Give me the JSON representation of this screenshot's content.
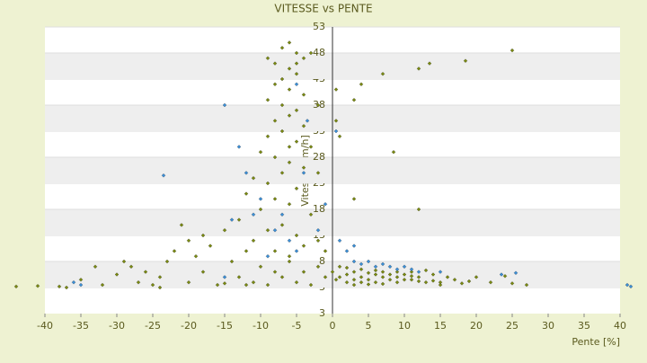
{
  "chart_data": {
    "type": "scatter",
    "title": "VITESSE vs PENTE",
    "x_label": "Pente [%]",
    "y_label": "Vitesse [km/h]",
    "xlim": [
      -40,
      40
    ],
    "xticks": [
      -40,
      -35,
      -30,
      -25,
      -20,
      -15,
      -10,
      -5,
      0,
      5,
      10,
      15,
      20,
      25,
      30,
      35,
      40
    ],
    "ylim": [
      -2,
      53
    ],
    "yticks": [
      3,
      8,
      13,
      18,
      23,
      28,
      33,
      38,
      43,
      48,
      53
    ],
    "y_axis_end_label": "3",
    "grid": true,
    "series": [
      {
        "color": "#7a8a10",
        "x": [
          -7,
          -6,
          -5,
          -4,
          -8,
          -6,
          -5,
          -7,
          -8,
          -6,
          -4,
          -9,
          -7,
          -5,
          -6,
          -8,
          -4,
          -7,
          -9,
          -5,
          -6,
          -10,
          -8,
          -6,
          -4,
          -7,
          -11,
          -9,
          -5,
          -12,
          -8,
          -6,
          -10,
          -3,
          -13,
          -7,
          -9,
          -5,
          -11,
          -4,
          -8,
          -6,
          -3,
          -9,
          -5,
          -2,
          -3,
          -2,
          0.5,
          0.5,
          1,
          -38,
          -35,
          -32,
          -30,
          -28,
          -27,
          -26,
          -25,
          -24,
          -23,
          -22,
          -21,
          -20,
          -19,
          -18,
          -17,
          -16,
          -15,
          -14,
          -13,
          -12,
          -11,
          -10,
          -9,
          -8,
          -7,
          -6,
          -5,
          -4,
          -3,
          -2,
          -1,
          -15,
          -12,
          -20,
          -18,
          -24,
          -44,
          -41,
          -37,
          -33,
          -29,
          -2,
          -1,
          0,
          1,
          2,
          3,
          4,
          5,
          6,
          7,
          8,
          9,
          10,
          11,
          12,
          13,
          14,
          15,
          16,
          17,
          18,
          19,
          20,
          22,
          25,
          2,
          3,
          4,
          5,
          6,
          7,
          8,
          9,
          10,
          11,
          12,
          1,
          2,
          3,
          5,
          7,
          13,
          15,
          0.5,
          6,
          9,
          4,
          11,
          14,
          24,
          27,
          4,
          7,
          12,
          13.5,
          18.5,
          25,
          8.5,
          12,
          3,
          3
        ],
        "values": [
          49,
          50,
          48,
          47,
          46,
          45,
          44,
          43,
          42,
          41,
          40,
          39,
          38,
          37,
          36,
          35,
          34,
          33,
          32,
          31,
          30,
          29,
          28,
          27,
          26,
          25,
          24,
          23,
          22,
          21,
          20,
          19,
          18,
          17,
          16,
          15,
          14,
          13,
          12,
          11,
          10,
          9,
          48,
          47,
          46,
          38,
          30,
          25,
          41,
          35,
          32,
          3.2,
          4.5,
          3.5,
          5.5,
          7,
          4,
          6,
          3.5,
          5,
          8,
          10,
          15,
          12,
          9,
          6,
          11,
          3.5,
          14,
          8,
          5,
          10,
          4,
          7,
          3.5,
          6,
          5,
          8,
          4,
          6,
          3.5,
          7,
          5,
          3.8,
          3.5,
          4,
          13,
          3,
          3.2,
          3.3,
          3,
          7,
          8,
          12,
          10,
          6,
          5,
          5.5,
          6,
          5,
          4.5,
          5.5,
          5,
          4.5,
          5,
          5.5,
          4.5,
          5,
          4,
          5.5,
          4,
          5,
          4.5,
          3.8,
          4.2,
          5,
          4,
          3.8,
          4,
          4.5,
          6.5,
          5.8,
          4,
          6,
          5.5,
          4,
          4.5,
          6,
          4.2,
          7,
          6.8,
          3.5,
          3.6,
          3.7,
          6.3,
          3.5,
          4.5,
          6.3,
          6,
          4,
          5.2,
          4.3,
          5.2,
          3.5,
          42,
          44,
          45,
          46,
          46.5,
          48.5,
          29,
          18,
          39,
          20
        ]
      },
      {
        "color": "#3a8fd8",
        "x": [
          -15,
          -23.5,
          -13,
          -12,
          -10,
          -11,
          -8,
          -14,
          -6,
          -5,
          2,
          3,
          4,
          5,
          6,
          7,
          8,
          9,
          10,
          11,
          12,
          1,
          3,
          -1,
          -2,
          -36,
          -35,
          -15,
          41,
          41.5,
          23.5,
          25.5,
          15,
          -5,
          -3.5,
          0.5,
          -7,
          -9,
          -4
        ],
        "values": [
          38,
          24.5,
          30,
          25,
          20,
          17,
          14,
          16,
          12,
          10,
          10,
          8,
          7.5,
          8,
          7,
          7.5,
          7,
          6.5,
          7,
          6.5,
          6,
          12,
          11,
          19,
          14,
          4,
          3.5,
          5,
          3.5,
          3.2,
          5.5,
          5.8,
          6,
          42,
          35,
          33,
          17,
          9,
          25
        ]
      }
    ]
  }
}
